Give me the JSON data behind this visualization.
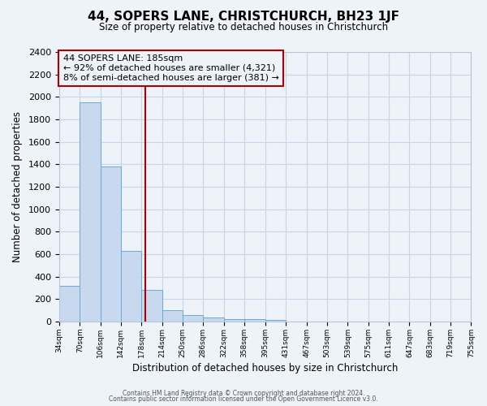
{
  "title": "44, SOPERS LANE, CHRISTCHURCH, BH23 1JF",
  "subtitle": "Size of property relative to detached houses in Christchurch",
  "xlabel": "Distribution of detached houses by size in Christchurch",
  "ylabel": "Number of detached properties",
  "bar_left_edges": [
    34,
    70,
    106,
    142,
    178,
    214,
    250,
    286,
    322,
    358,
    395,
    431,
    467,
    503,
    539,
    575,
    611,
    647,
    683,
    719
  ],
  "bar_right_edges": [
    70,
    106,
    142,
    178,
    214,
    250,
    286,
    322,
    358,
    395,
    431,
    467,
    503,
    539,
    575,
    611,
    647,
    683,
    719,
    755
  ],
  "bar_heights": [
    320,
    1950,
    1380,
    630,
    280,
    100,
    55,
    40,
    25,
    20,
    18,
    0,
    0,
    0,
    0,
    0,
    0,
    0,
    0,
    0
  ],
  "bar_color": "#c8d9ef",
  "bar_edge_color": "#6aaad4",
  "grid_color": "#c8d4e8",
  "background_color": "#eef2f9",
  "property_size": 185,
  "red_line_color": "#aa0000",
  "annotation_text_line1": "44 SOPERS LANE: 185sqm",
  "annotation_text_line2": "← 92% of detached houses are smaller (4,321)",
  "annotation_text_line3": "8% of semi-detached houses are larger (381) →",
  "ylim": [
    0,
    2400
  ],
  "yticks": [
    0,
    200,
    400,
    600,
    800,
    1000,
    1200,
    1400,
    1600,
    1800,
    2000,
    2200,
    2400
  ],
  "xlim_left": 34,
  "xlim_right": 755,
  "tick_positions": [
    34,
    70,
    106,
    142,
    178,
    214,
    250,
    286,
    322,
    358,
    395,
    431,
    467,
    503,
    539,
    575,
    611,
    647,
    683,
    719,
    755
  ],
  "tick_labels": [
    "34sqm",
    "70sqm",
    "106sqm",
    "142sqm",
    "178sqm",
    "214sqm",
    "250sqm",
    "286sqm",
    "322sqm",
    "358sqm",
    "395sqm",
    "431sqm",
    "467sqm",
    "503sqm",
    "539sqm",
    "575sqm",
    "611sqm",
    "647sqm",
    "683sqm",
    "719sqm",
    "755sqm"
  ],
  "footer_line1": "Contains HM Land Registry data © Crown copyright and database right 2024.",
  "footer_line2": "Contains public sector information licensed under the Open Government Licence v3.0."
}
